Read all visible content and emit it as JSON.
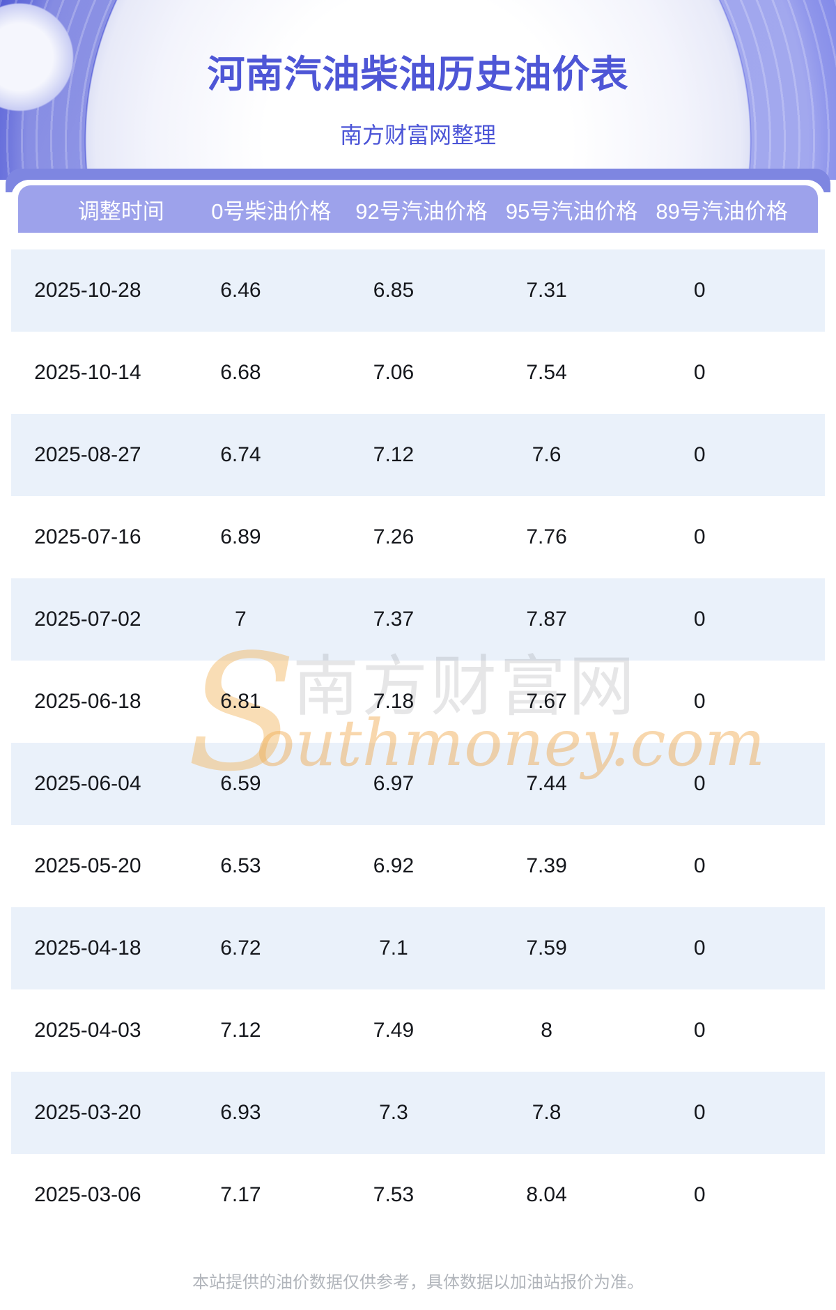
{
  "page": {
    "title": "河南汽油柴油历史油价表",
    "subtitle": "南方财富网整理",
    "footer_note": "本站提供的油价数据仅供参考，具体数据以加油站报价为准。"
  },
  "watermark": {
    "initial": "S",
    "cn_text": "南方财富网",
    "en_text": "outhmoney.com"
  },
  "table": {
    "columns": [
      "调整时间",
      "0号柴油价格",
      "92号汽油价格",
      "95号汽油价格",
      "89号汽油价格"
    ],
    "rows": [
      {
        "date": "2025-10-28",
        "prices": [
          "6.46",
          "6.85",
          "7.31",
          "0"
        ]
      },
      {
        "date": "2025-10-14",
        "prices": [
          "6.68",
          "7.06",
          "7.54",
          "0"
        ]
      },
      {
        "date": "2025-08-27",
        "prices": [
          "6.74",
          "7.12",
          "7.6",
          "0"
        ]
      },
      {
        "date": "2025-07-16",
        "prices": [
          "6.89",
          "7.26",
          "7.76",
          "0"
        ]
      },
      {
        "date": "2025-07-02",
        "prices": [
          "7",
          "7.37",
          "7.87",
          "0"
        ]
      },
      {
        "date": "2025-06-18",
        "prices": [
          "6.81",
          "7.18",
          "7.67",
          "0"
        ]
      },
      {
        "date": "2025-06-04",
        "prices": [
          "6.59",
          "6.97",
          "7.44",
          "0"
        ]
      },
      {
        "date": "2025-05-20",
        "prices": [
          "6.53",
          "6.92",
          "7.39",
          "0"
        ]
      },
      {
        "date": "2025-04-18",
        "prices": [
          "6.72",
          "7.1",
          "7.59",
          "0"
        ]
      },
      {
        "date": "2025-04-03",
        "prices": [
          "7.12",
          "7.49",
          "8",
          "0"
        ]
      },
      {
        "date": "2025-03-20",
        "prices": [
          "6.93",
          "7.3",
          "7.8",
          "0"
        ]
      },
      {
        "date": "2025-03-06",
        "prices": [
          "7.17",
          "7.53",
          "8.04",
          "0"
        ]
      }
    ]
  },
  "colors": {
    "bg-purple": "#6B74E2",
    "band": "#7E86E1",
    "header-bg": "#9DA2EB",
    "title": "#4E56D6",
    "subtitle": "#4C55D7",
    "row-alt": "#EAF1FA",
    "row-text": "#15171C",
    "footer-text": "#B1B5BB"
  }
}
